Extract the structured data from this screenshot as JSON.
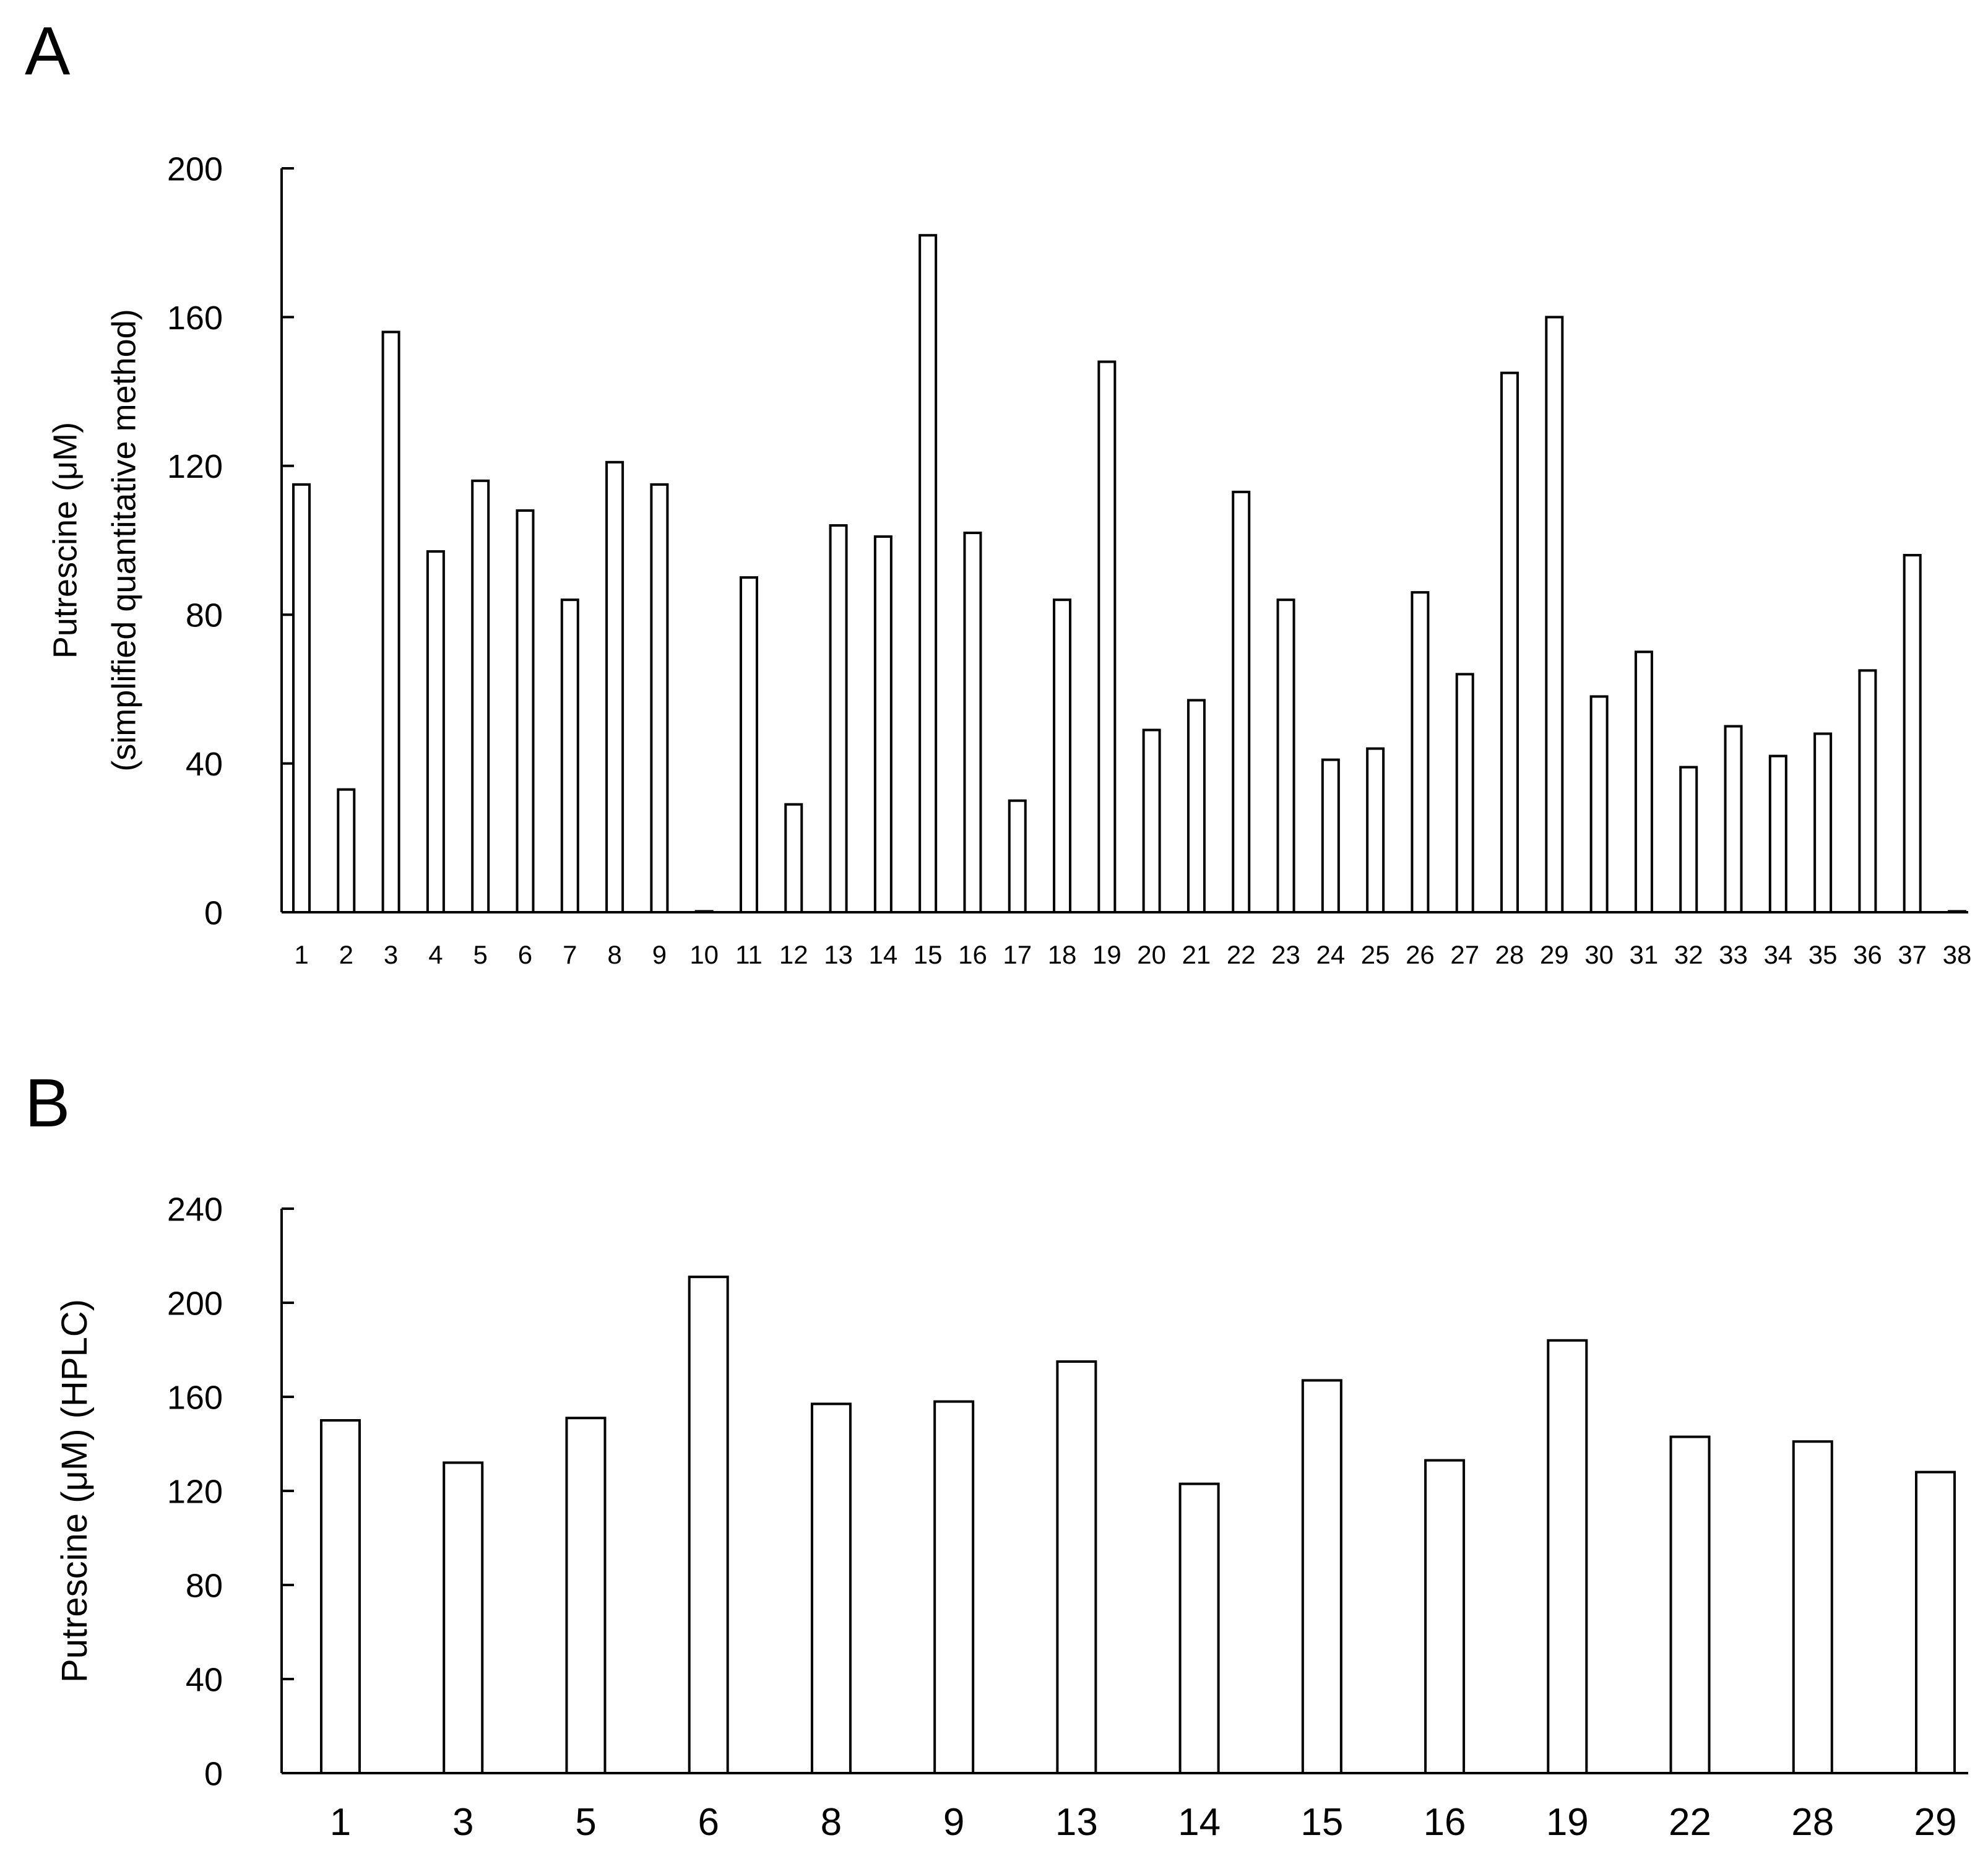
{
  "chart_data": [
    {
      "panel_label": "A",
      "type": "bar",
      "ylabel_lines": [
        "Putrescine (μM)",
        "(simplified quantitative method)"
      ],
      "ylim": [
        0,
        200
      ],
      "yticks": [
        0,
        40,
        80,
        120,
        160,
        200
      ],
      "categories": [
        "1",
        "2",
        "3",
        "4",
        "5",
        "6",
        "7",
        "8",
        "9",
        "10",
        "11",
        "12",
        "13",
        "14",
        "15",
        "16",
        "17",
        "18",
        "19",
        "20",
        "21",
        "22",
        "23",
        "24",
        "25",
        "26",
        "27",
        "28",
        "29",
        "30",
        "31",
        "32",
        "33",
        "34",
        "35",
        "36",
        "37",
        "38"
      ],
      "values": [
        115,
        33,
        156,
        97,
        116,
        108,
        84,
        121,
        115,
        0,
        90,
        29,
        104,
        101,
        182,
        102,
        30,
        84,
        148,
        49,
        57,
        113,
        84,
        41,
        44,
        86,
        64,
        145,
        160,
        58,
        70,
        39,
        50,
        42,
        48,
        65,
        96,
        0
      ]
    },
    {
      "panel_label": "B",
      "type": "bar",
      "ylabel_lines": [
        "Putrescine (μM) (HPLC)"
      ],
      "ylim": [
        0,
        240
      ],
      "yticks": [
        0,
        40,
        80,
        120,
        160,
        200,
        240
      ],
      "categories": [
        "1",
        "3",
        "5",
        "6",
        "8",
        "9",
        "13",
        "14",
        "15",
        "16",
        "19",
        "22",
        "28",
        "29"
      ],
      "values": [
        150,
        132,
        151,
        211,
        157,
        158,
        175,
        123,
        167,
        133,
        184,
        143,
        141,
        128
      ]
    }
  ]
}
